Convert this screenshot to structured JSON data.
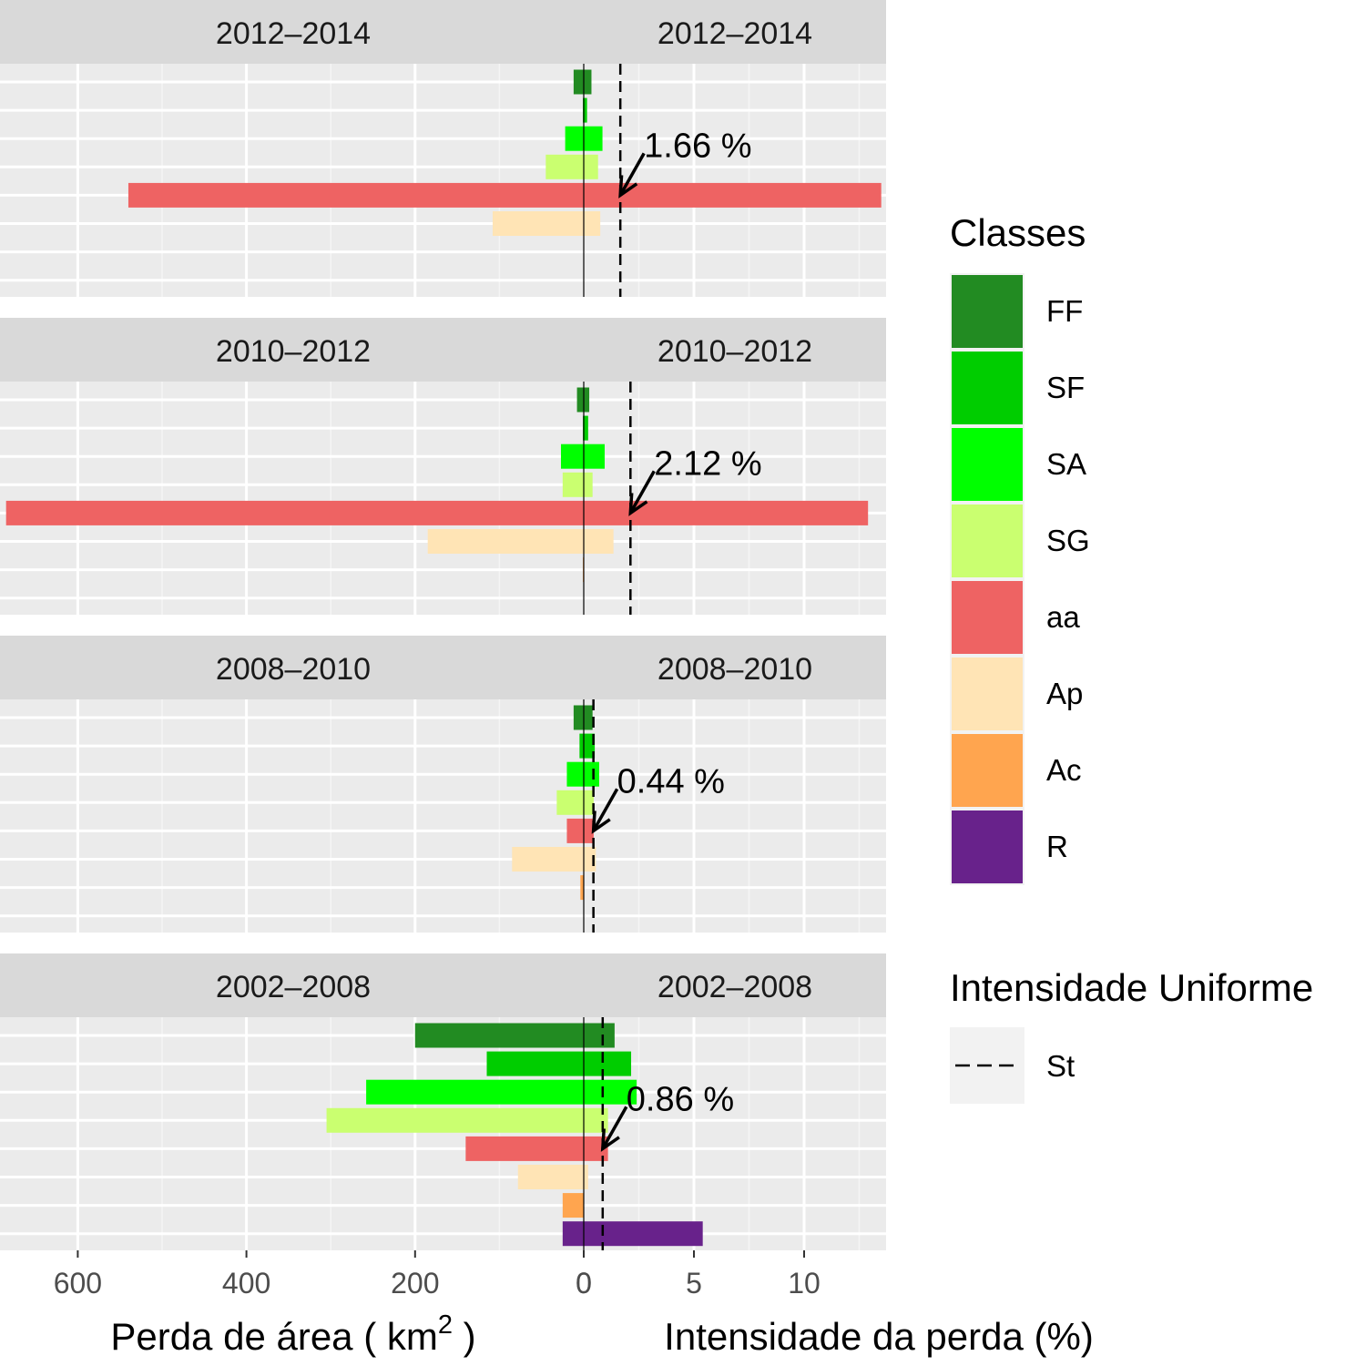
{
  "chart_data": {
    "type": "bar",
    "description_axes": "Mirrored horizontal bars: left half = area loss (km2), right half = loss intensity (%)",
    "left_axis": {
      "label_prefix": "Perda de área ( km",
      "label_sup": "2",
      "label_suffix": " )",
      "ticks": [
        600,
        400,
        200,
        0
      ],
      "tick_labels": [
        "600",
        "400",
        "200",
        "0"
      ],
      "range": [
        720,
        0
      ]
    },
    "right_axis": {
      "label": "Intensidade da perda (%)",
      "ticks": [
        0,
        5,
        10
      ],
      "tick_labels": [
        "0",
        "5",
        "10"
      ],
      "range": [
        0,
        13.5
      ]
    },
    "categories": [
      "FF",
      "SF",
      "SA",
      "SG",
      "aa",
      "Ap",
      "Ac",
      "R"
    ],
    "colors": {
      "FF": "#228B22",
      "SF": "#00CD00",
      "SA": "#00FF00",
      "SG": "#CAFF70",
      "aa": "#EE6363",
      "Ap": "#FFE4B5",
      "Ac": "#FFA54F",
      "R": "#68228B"
    },
    "panels": [
      {
        "period": "2012–2014",
        "area_loss_km2": {
          "FF": 12,
          "SF": 1,
          "SA": 22,
          "SG": 45,
          "aa": 540,
          "Ap": 108,
          "Ac": 0,
          "R": 0
        },
        "intensity_pct": {
          "FF": 0.35,
          "SF": 0.15,
          "SA": 0.85,
          "SG": 0.65,
          "aa": 13.5,
          "Ap": 0.75,
          "Ac": 0,
          "R": 0
        },
        "uniform_intensity": 1.66,
        "annotation": "1.66 %"
      },
      {
        "period": "2010–2012",
        "area_loss_km2": {
          "FF": 8,
          "SF": 1,
          "SA": 27,
          "SG": 25,
          "aa": 685,
          "Ap": 185,
          "Ac": 1,
          "R": 0
        },
        "intensity_pct": {
          "FF": 0.25,
          "SF": 0.2,
          "SA": 0.95,
          "SG": 0.4,
          "aa": 12.9,
          "Ap": 1.35,
          "Ac": 0,
          "R": 0
        },
        "uniform_intensity": 2.12,
        "annotation": "2.12 %"
      },
      {
        "period": "2008–2010",
        "area_loss_km2": {
          "FF": 12,
          "SF": 5,
          "SA": 20,
          "SG": 32,
          "aa": 20,
          "Ap": 85,
          "Ac": 4,
          "R": 0
        },
        "intensity_pct": {
          "FF": 0.4,
          "SF": 0.5,
          "SA": 0.7,
          "SG": 0.45,
          "aa": 0.45,
          "Ap": 0.55,
          "Ac": 0,
          "R": 0
        },
        "uniform_intensity": 0.44,
        "annotation": "0.44 %"
      },
      {
        "period": "2002–2008",
        "area_loss_km2": {
          "FF": 200,
          "SF": 115,
          "SA": 258,
          "SG": 305,
          "aa": 140,
          "Ap": 78,
          "Ac": 25,
          "R": 25
        },
        "intensity_pct": {
          "FF": 1.4,
          "SF": 2.15,
          "SA": 2.4,
          "SG": 1.1,
          "aa": 1.1,
          "Ap": 0.2,
          "Ac": 0,
          "R": 5.4
        },
        "uniform_intensity": 0.86,
        "annotation": "0.86 %"
      }
    ],
    "legend": {
      "position": "right",
      "classes_title": "Classes",
      "classes": [
        "FF",
        "SF",
        "SA",
        "SG",
        "aa",
        "Ap",
        "Ac",
        "R"
      ],
      "line_title": "Intensidade Uniforme",
      "line_label": "St"
    },
    "grid": true
  }
}
